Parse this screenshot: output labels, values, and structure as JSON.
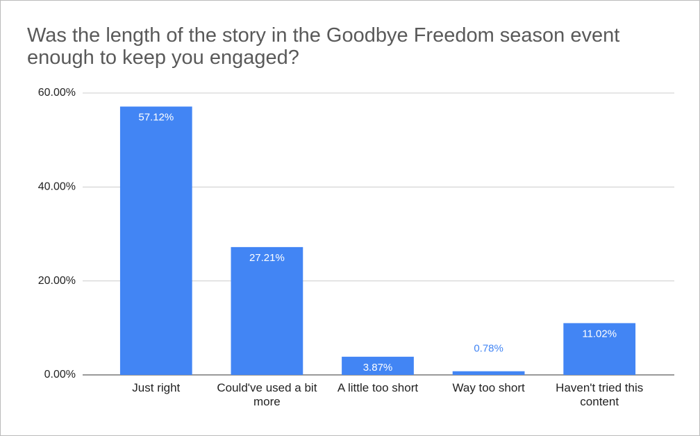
{
  "chart_data": {
    "type": "bar",
    "title": "Was the length of the story in the Goodbye Freedom season event enough to keep you engaged?",
    "categories": [
      "Just right",
      "Could've used a bit more",
      "A little too short",
      "Way too short",
      "Haven't tried this content"
    ],
    "values": [
      57.12,
      27.21,
      3.87,
      0.78,
      11.02
    ],
    "value_labels": [
      "57.12%",
      "27.21%",
      "3.87%",
      "0.78%",
      "11.02%"
    ],
    "color": "#4285f4",
    "ylim": [
      0,
      60
    ],
    "yticks": [
      {
        "value": 0,
        "label": "0.00%"
      },
      {
        "value": 20,
        "label": "20.00%"
      },
      {
        "value": 40,
        "label": "40.00%"
      },
      {
        "value": 60,
        "label": "60.00%"
      }
    ],
    "grid": true
  }
}
